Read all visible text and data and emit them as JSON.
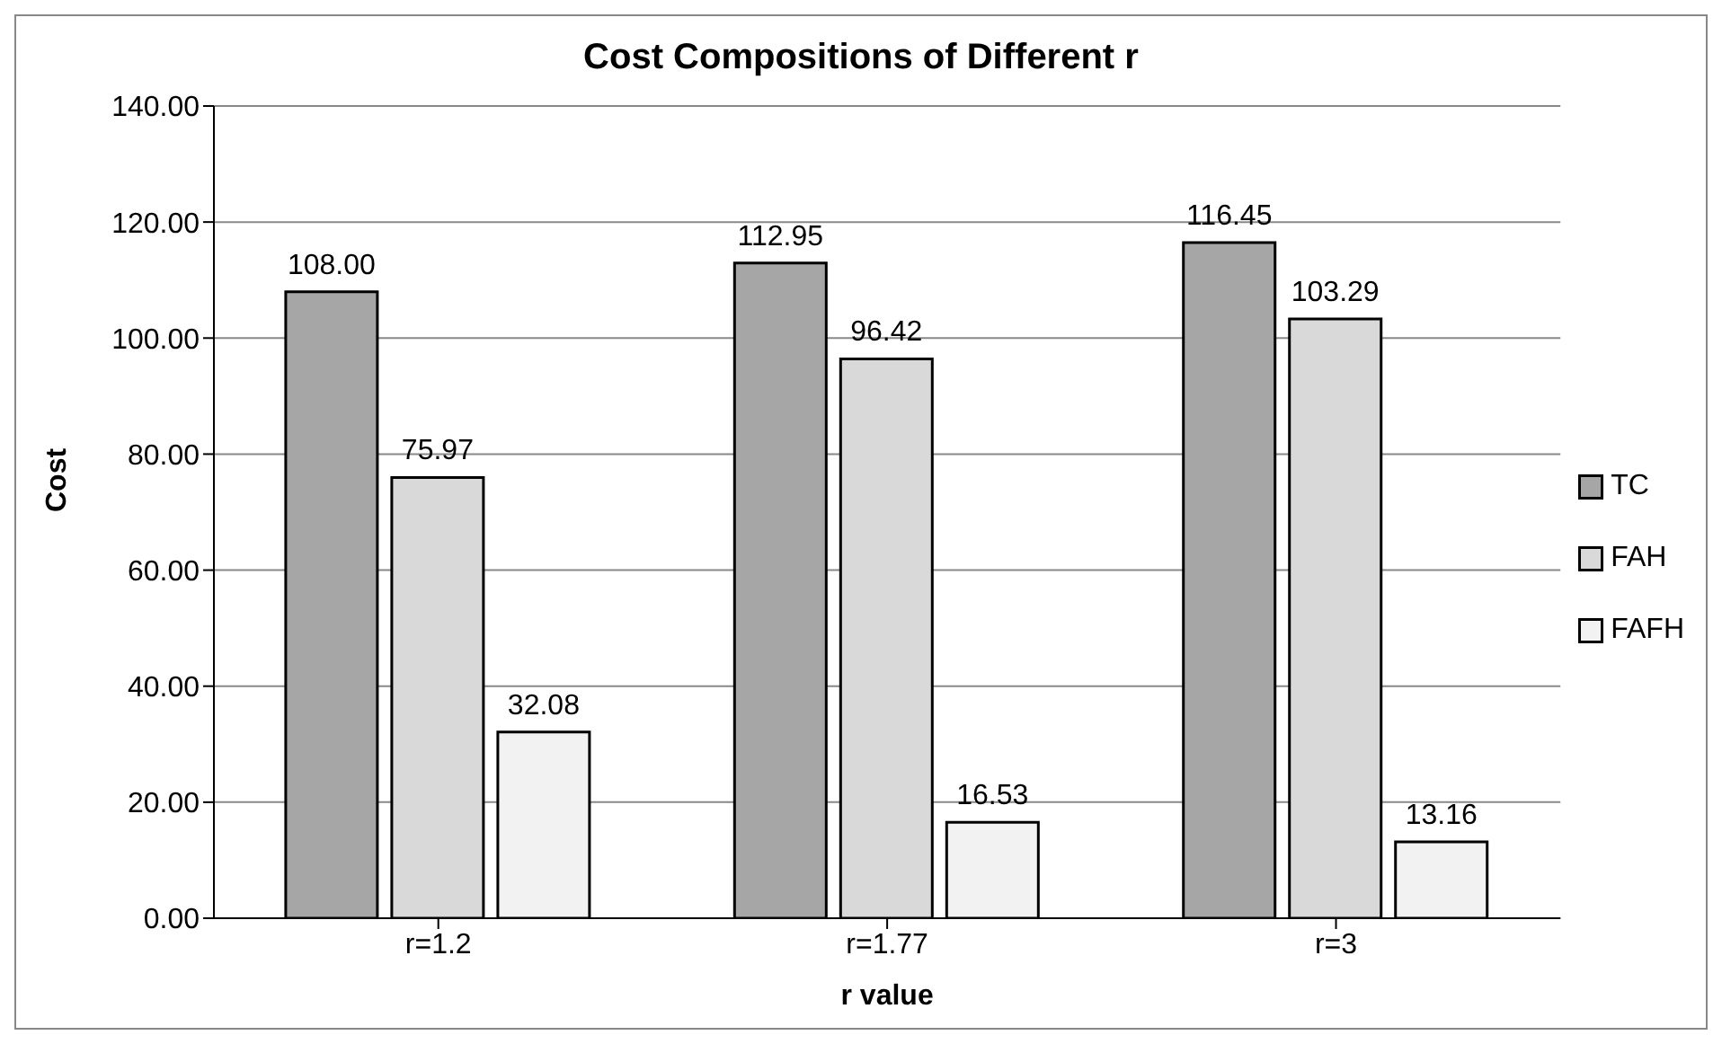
{
  "chart_data": {
    "type": "bar",
    "title": "Cost Compositions of Different r",
    "xlabel": "r  value",
    "ylabel": "Cost",
    "categories": [
      "r=1.2",
      "r=1.77",
      "r=3"
    ],
    "series": [
      {
        "name": "TC",
        "color": "#a6a6a6",
        "values": [
          108.0,
          112.95,
          116.45
        ],
        "value_labels": [
          "108.00",
          "112.95",
          "116.45"
        ]
      },
      {
        "name": "FAH",
        "color": "#d9d9d9",
        "values": [
          75.97,
          96.42,
          103.29
        ],
        "value_labels": [
          "75.97",
          "96.42",
          "103.29"
        ]
      },
      {
        "name": "FAFH",
        "color": "#f2f2f2",
        "values": [
          32.08,
          16.53,
          13.16
        ],
        "value_labels": [
          "32.08",
          "16.53",
          "13.16"
        ]
      }
    ],
    "ylim": [
      0,
      140
    ],
    "yticks": [
      {
        "value": 0,
        "label": "0.00"
      },
      {
        "value": 20,
        "label": "20.00"
      },
      {
        "value": 40,
        "label": "40.00"
      },
      {
        "value": 60,
        "label": "60.00"
      },
      {
        "value": 80,
        "label": "80.00"
      },
      {
        "value": 100,
        "label": "100.00"
      },
      {
        "value": 120,
        "label": "120.00"
      },
      {
        "value": 140,
        "label": "140.00"
      }
    ],
    "grid": "y",
    "legend": "right"
  }
}
